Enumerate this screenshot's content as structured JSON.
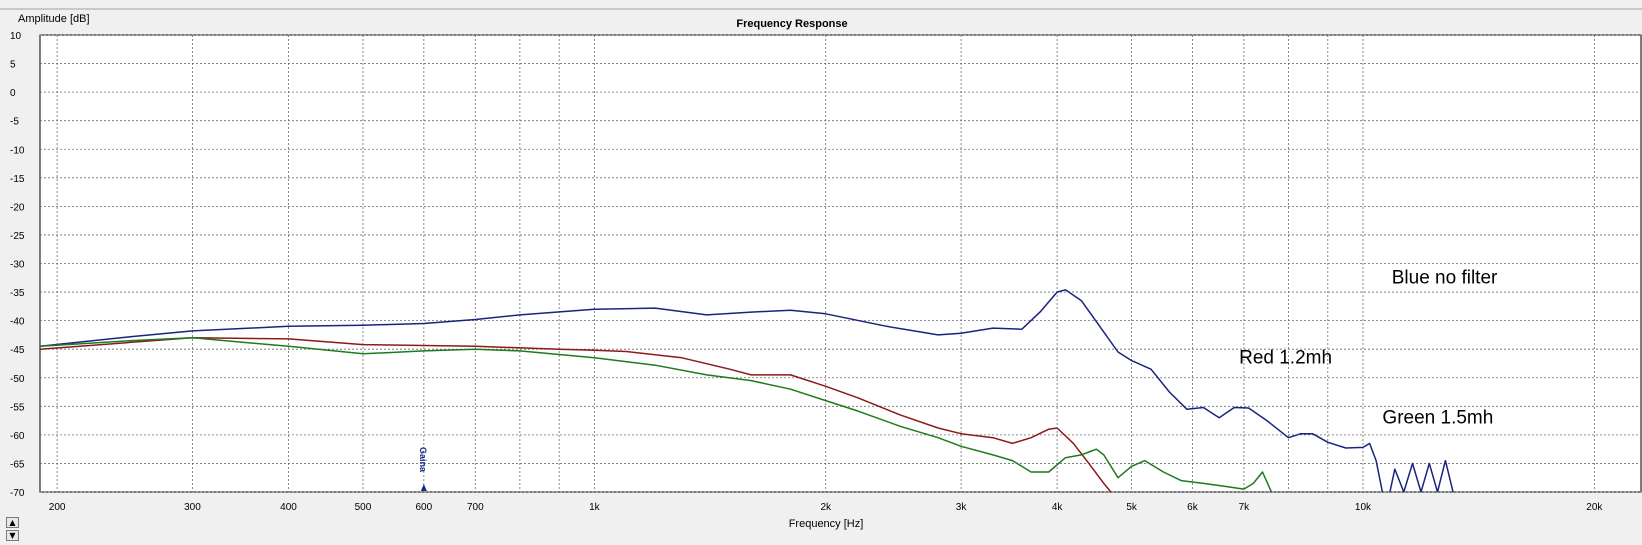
{
  "chart_data": {
    "type": "line",
    "title": "Frequency Response",
    "xlabel": "Frequency [Hz]",
    "ylabel": "Amplitude [dB]",
    "xscale": "log",
    "xlim": [
      190,
      23000
    ],
    "ylim": [
      -70,
      10
    ],
    "grid": true,
    "xticks": [
      {
        "value": 200,
        "label": "200"
      },
      {
        "value": 300,
        "label": "300"
      },
      {
        "value": 400,
        "label": "400"
      },
      {
        "value": 500,
        "label": "500"
      },
      {
        "value": 600,
        "label": "600"
      },
      {
        "value": 700,
        "label": "700"
      },
      {
        "value": 1000,
        "label": "1k"
      },
      {
        "value": 2000,
        "label": "2k"
      },
      {
        "value": 3000,
        "label": "3k"
      },
      {
        "value": 4000,
        "label": "4k"
      },
      {
        "value": 5000,
        "label": "5k"
      },
      {
        "value": 6000,
        "label": "6k"
      },
      {
        "value": 7000,
        "label": "7k"
      },
      {
        "value": 10000,
        "label": "10k"
      },
      {
        "value": 20000,
        "label": "20k"
      }
    ],
    "yticks": [
      10,
      5,
      0,
      -5,
      -10,
      -15,
      -20,
      -25,
      -30,
      -35,
      -40,
      -45,
      -50,
      -55,
      -60,
      -65,
      -70
    ],
    "marker": {
      "label": "Gaina",
      "x": 600,
      "color": "#1a2a8c"
    },
    "series": [
      {
        "color": "#1a237e",
        "x": [
          190,
          250,
          300,
          400,
          500,
          600,
          700,
          800,
          1000,
          1200,
          1400,
          1600,
          1800,
          2000,
          2400,
          2800,
          3000,
          3300,
          3600,
          3800,
          4000,
          4100,
          4300,
          4600,
          4800,
          5000,
          5300,
          5600,
          5900,
          6200,
          6500,
          6800,
          7100,
          7500,
          8000,
          8300,
          8600,
          9000,
          9500,
          10000,
          10200,
          10400,
          10600,
          10800,
          11000,
          11300,
          11600,
          11900,
          12200,
          12500,
          12800,
          13100
        ],
        "y": [
          -44.5,
          -42.8,
          -41.8,
          -41,
          -40.8,
          -40.5,
          -39.8,
          -39,
          -38,
          -37.8,
          -39,
          -38.5,
          -38.2,
          -38.8,
          -41,
          -42.5,
          -42.2,
          -41.3,
          -41.5,
          -38.5,
          -35,
          -34.6,
          -36.5,
          -42,
          -45.5,
          -47,
          -48.5,
          -52.5,
          -55.5,
          -55.2,
          -57,
          -55.2,
          -55.3,
          -57.5,
          -60.5,
          -59.8,
          -59.8,
          -61.3,
          -62.3,
          -62.2,
          -61.5,
          -64.5,
          -70,
          -71,
          -66,
          -70,
          -65,
          -70,
          -65,
          -70,
          -64.5,
          -70
        ]
      },
      {
        "color": "#8b1a1a",
        "x": [
          190,
          250,
          300,
          400,
          500,
          700,
          900,
          1000,
          1100,
          1300,
          1500,
          1600,
          1800,
          2000,
          2200,
          2500,
          2800,
          3000,
          3300,
          3500,
          3700,
          3900,
          4000,
          4200,
          4400,
          4600,
          4700
        ],
        "y": [
          -45,
          -43.8,
          -43,
          -43.2,
          -44.2,
          -44.5,
          -45,
          -45.2,
          -45.4,
          -46.5,
          -48.5,
          -49.5,
          -49.5,
          -51.5,
          -53.5,
          -56.5,
          -58.8,
          -59.8,
          -60.5,
          -61.5,
          -60.5,
          -59,
          -58.8,
          -61.5,
          -65,
          -68.5,
          -70
        ]
      },
      {
        "color": "#1e7a1e",
        "x": [
          190,
          250,
          300,
          400,
          500,
          600,
          700,
          800,
          1000,
          1200,
          1400,
          1600,
          1800,
          2000,
          2200,
          2500,
          2800,
          3000,
          3300,
          3500,
          3700,
          3900,
          4100,
          4300,
          4400,
          4500,
          4600,
          4800,
          5000,
          5200,
          5500,
          5800,
          6200,
          6600,
          7000,
          7200,
          7400,
          7600
        ],
        "y": [
          -44.5,
          -43.5,
          -43,
          -44.5,
          -45.8,
          -45.3,
          -45,
          -45.3,
          -46.5,
          -47.8,
          -49.5,
          -50.5,
          -52,
          -54,
          -55.8,
          -58.5,
          -60.5,
          -62,
          -63.5,
          -64.5,
          -66.5,
          -66.5,
          -64,
          -63.5,
          -63,
          -62.5,
          -63.5,
          -67.5,
          -65.5,
          -64.5,
          -66.5,
          -68,
          -68.5,
          -69,
          -69.5,
          -68.5,
          -66.5,
          -70
        ]
      }
    ],
    "annotations": [
      {
        "text": "Blue no filter",
        "x": 10900,
        "y": -33.5
      },
      {
        "text": "Red 1.2mh",
        "x": 6900,
        "y": -47.5
      },
      {
        "text": "Green 1.5mh",
        "x": 10600,
        "y": -58
      }
    ]
  }
}
